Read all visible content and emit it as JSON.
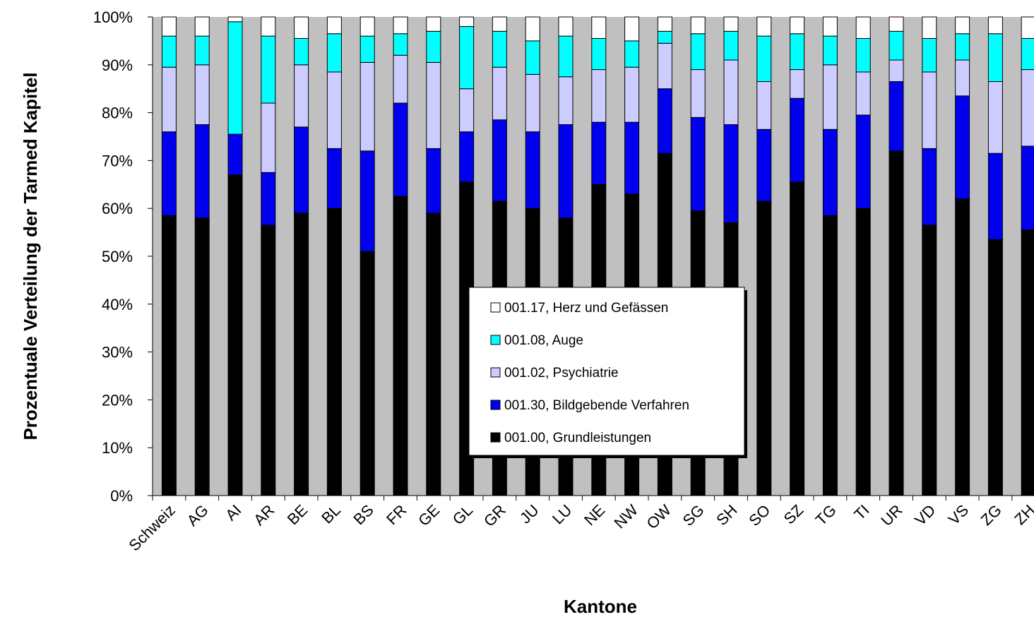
{
  "chart_data": {
    "type": "bar",
    "stacked": true,
    "percent": true,
    "title": "",
    "xlabel": "Kantone",
    "ylabel": "Prozentuale Verteilung der Tarmed Kapitel",
    "ylim": [
      0,
      100
    ],
    "yticks": [
      "0%",
      "10%",
      "20%",
      "30%",
      "40%",
      "50%",
      "60%",
      "70%",
      "80%",
      "90%",
      "100%"
    ],
    "plot_background": "#c0c0c0",
    "categories": [
      "Schweiz",
      "AG",
      "AI",
      "AR",
      "BE",
      "BL",
      "BS",
      "FR",
      "GE",
      "GL",
      "GR",
      "JU",
      "LU",
      "NE",
      "NW",
      "OW",
      "SG",
      "SH",
      "SO",
      "SZ",
      "TG",
      "TI",
      "UR",
      "VD",
      "VS",
      "ZG",
      "ZH"
    ],
    "series": [
      {
        "name": "001.00, Grundleistungen",
        "color": "#000000",
        "values": [
          58.5,
          58,
          67,
          56.5,
          59,
          60,
          51,
          62.5,
          59,
          65.5,
          61.5,
          60,
          58,
          65,
          63,
          71.5,
          59.5,
          57,
          61.5,
          65.5,
          58.5,
          60,
          72,
          56.5,
          62,
          53.5,
          55.5
        ]
      },
      {
        "name": "001.30, Bildgebende Verfahren",
        "color": "#0000ee",
        "values": [
          17.5,
          19.5,
          8.5,
          11,
          18,
          12.5,
          21,
          19.5,
          13.5,
          10.5,
          17,
          16,
          19.5,
          13,
          15,
          13.5,
          19.5,
          20.5,
          15,
          17.5,
          18,
          19.5,
          14.5,
          16,
          21.5,
          18,
          17.5
        ]
      },
      {
        "name": "001.02, Psychiatrie",
        "color": "#ccccff",
        "values": [
          13.5,
          12.5,
          0,
          14.5,
          13,
          16,
          18.5,
          10,
          18,
          9,
          11,
          12,
          10,
          11,
          11.5,
          9.5,
          10,
          13.5,
          10,
          6,
          13.5,
          9,
          4.5,
          16,
          7.5,
          15,
          16
        ]
      },
      {
        "name": "001.08, Auge",
        "color": "#00ffff",
        "values": [
          6.5,
          6,
          23.5,
          14,
          5.5,
          8,
          5.5,
          4.5,
          6.5,
          13,
          7.5,
          7,
          8.5,
          6.5,
          5.5,
          2.5,
          7.5,
          6,
          9.5,
          7.5,
          6,
          7,
          6,
          7,
          5.5,
          10,
          6.5
        ]
      },
      {
        "name": "001.17, Herz und Gefässen",
        "color": "#ffffff",
        "values": [
          4,
          4,
          1,
          4,
          4.5,
          3.5,
          4,
          3.5,
          3,
          2,
          3,
          5,
          4,
          4.5,
          5,
          3,
          3.5,
          3,
          4,
          3.5,
          4,
          4.5,
          3,
          4.5,
          3.5,
          3.5,
          4.5
        ]
      }
    ],
    "legend": {
      "position": "center",
      "order": [
        "001.17, Herz und Gefässen",
        "001.08, Auge",
        "001.02, Psychiatrie",
        "001.30, Bildgebende Verfahren",
        "001.00, Grundleistungen"
      ]
    }
  }
}
